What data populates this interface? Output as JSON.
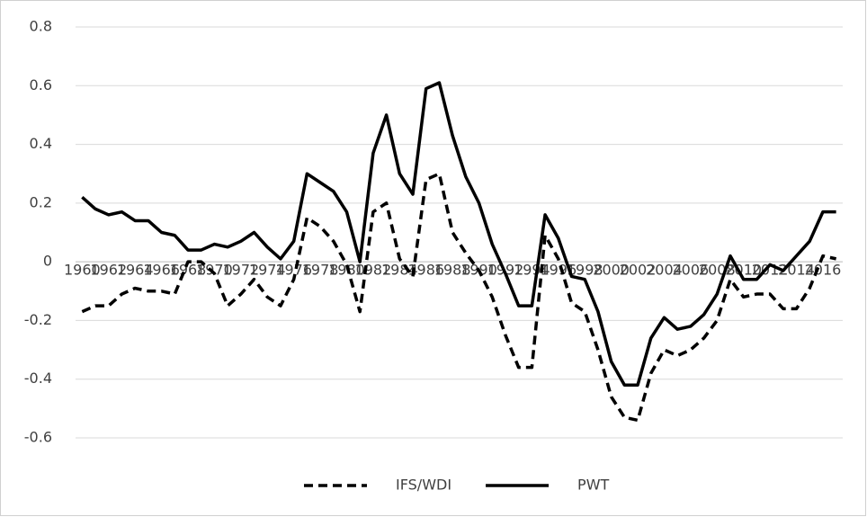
{
  "chart_data": {
    "type": "line",
    "categories": [
      "1960",
      null,
      "1962",
      null,
      "1964",
      null,
      "1966",
      null,
      "1968",
      null,
      "1970",
      null,
      "1972",
      null,
      "1974",
      null,
      "1976",
      null,
      "1978",
      null,
      "1980",
      null,
      "1982",
      null,
      "1984",
      null,
      "1986",
      null,
      "1988",
      null,
      "1990",
      null,
      "1992",
      null,
      "1994",
      null,
      "1996",
      null,
      "1998",
      null,
      "2000",
      null,
      "2002",
      null,
      "2004",
      null,
      "2006",
      null,
      "2008",
      null,
      "2010",
      null,
      "2012",
      null,
      "2014",
      null,
      "2016",
      null
    ],
    "series": [
      {
        "name": "IFS/WDI",
        "color": "#000000",
        "dash": "dashed",
        "values": [
          -0.17,
          -0.15,
          -0.15,
          -0.11,
          -0.09,
          -0.1,
          -0.1,
          -0.11,
          0.0,
          0.0,
          -0.04,
          -0.15,
          -0.11,
          -0.06,
          -0.12,
          -0.15,
          -0.06,
          0.15,
          0.12,
          0.07,
          -0.01,
          -0.17,
          0.17,
          0.2,
          0.01,
          -0.05,
          0.28,
          0.3,
          0.1,
          0.03,
          -0.03,
          -0.12,
          -0.25,
          -0.36,
          -0.36,
          0.09,
          0.01,
          -0.14,
          -0.17,
          -0.3,
          -0.46,
          -0.53,
          -0.54,
          -0.38,
          -0.3,
          -0.32,
          -0.3,
          -0.26,
          -0.2,
          -0.06,
          -0.12,
          -0.11,
          -0.11,
          -0.16,
          -0.16,
          -0.09,
          0.02,
          0.01
        ]
      },
      {
        "name": "PWT",
        "color": "#000000",
        "dash": "solid",
        "values": [
          0.22,
          0.18,
          0.16,
          0.17,
          0.14,
          0.14,
          0.1,
          0.09,
          0.04,
          0.04,
          0.06,
          0.05,
          0.07,
          0.1,
          0.05,
          0.01,
          0.07,
          0.3,
          0.27,
          0.24,
          0.17,
          0.0,
          0.37,
          0.5,
          0.3,
          0.23,
          0.59,
          0.61,
          0.43,
          0.29,
          0.2,
          0.06,
          -0.04,
          -0.15,
          -0.15,
          0.16,
          0.08,
          -0.05,
          -0.06,
          -0.17,
          -0.34,
          -0.42,
          -0.42,
          -0.26,
          -0.19,
          -0.23,
          -0.22,
          -0.18,
          -0.11,
          0.02,
          -0.06,
          -0.06,
          -0.01,
          -0.03,
          0.02,
          0.07,
          0.17,
          0.17
        ]
      }
    ],
    "ylim": [
      -0.6,
      0.8
    ],
    "yticks": [
      -0.6,
      -0.4,
      -0.2,
      0,
      0.2,
      0.4,
      0.6,
      0.8
    ],
    "grid": true,
    "legend": "bottom"
  }
}
